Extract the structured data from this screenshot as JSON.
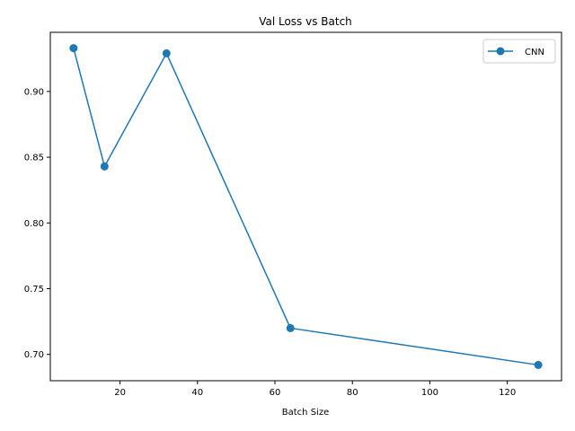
{
  "chart_data": {
    "type": "line",
    "title": "Val Loss vs Batch",
    "xlabel": "Batch Size",
    "ylabel": "",
    "xlim": [
      2,
      134
    ],
    "ylim": [
      0.68,
      0.945
    ],
    "xticks": [
      20,
      40,
      60,
      80,
      100,
      120
    ],
    "yticks": [
      0.7,
      0.75,
      0.8,
      0.85,
      0.9
    ],
    "xtick_labels": [
      "20",
      "40",
      "60",
      "80",
      "100",
      "120"
    ],
    "ytick_labels": [
      "0.70",
      "0.75",
      "0.80",
      "0.85",
      "0.90"
    ],
    "grid": false,
    "legend_position": "upper right",
    "series": [
      {
        "name": "CNN",
        "color": "#1f77b4",
        "marker": "circle",
        "x": [
          8,
          16,
          32,
          64,
          128
        ],
        "y": [
          0.933,
          0.843,
          0.929,
          0.72,
          0.692
        ]
      }
    ]
  }
}
